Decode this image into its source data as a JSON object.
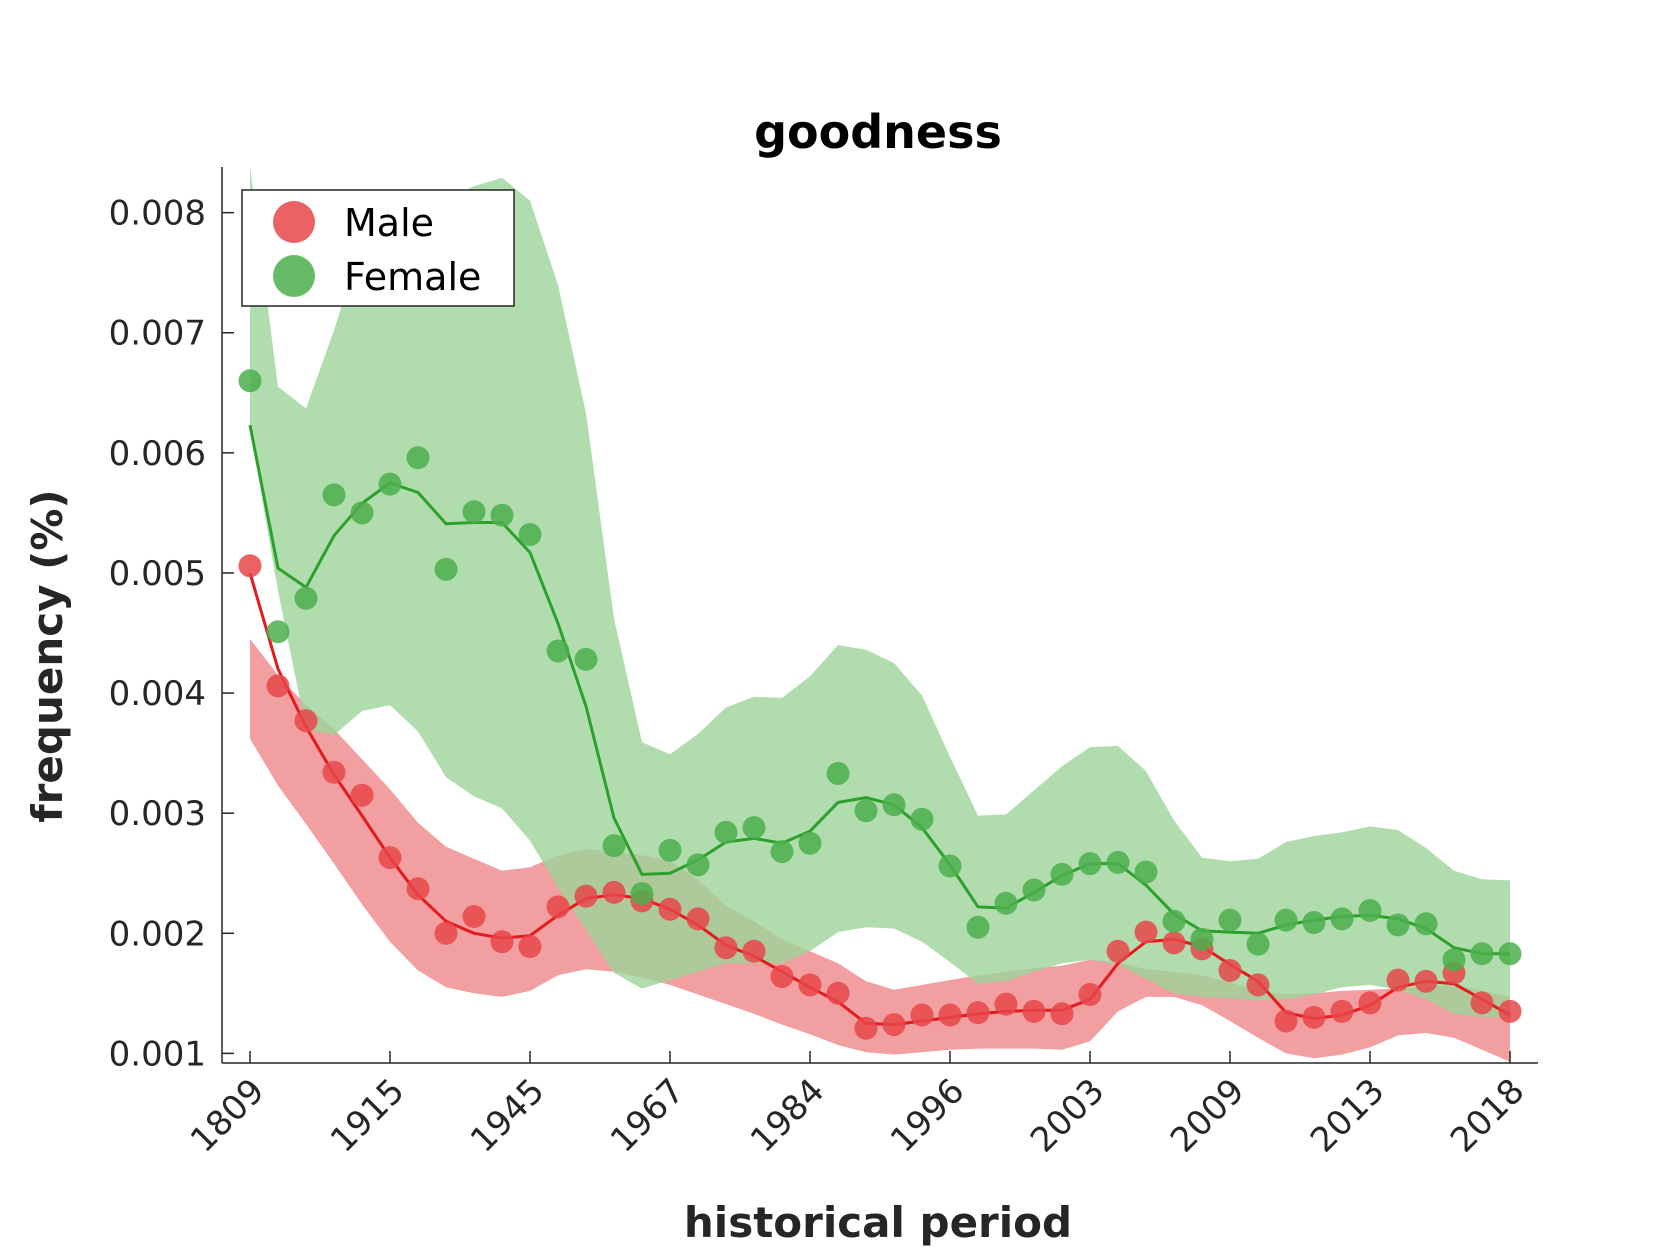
{
  "chart_data": {
    "type": "line",
    "title": "goodness",
    "xlabel": "historical period",
    "ylabel": "frequency (%)",
    "x_tick_labels": [
      "1809",
      "1915",
      "1945",
      "1967",
      "1984",
      "1996",
      "2003",
      "2009",
      "2013",
      "2018"
    ],
    "y_ticks": [
      0.001,
      0.002,
      0.003,
      0.004,
      0.005,
      0.006,
      0.007,
      0.008
    ],
    "y_tick_labels": [
      "0.001",
      "0.002",
      "0.003",
      "0.004",
      "0.005",
      "0.006",
      "0.007",
      "0.008"
    ],
    "ylim": [
      0.00092,
      0.00838
    ],
    "xlim": [
      -1,
      46
    ],
    "grid": false,
    "legend_position": "top-left",
    "series": [
      {
        "name": "Male",
        "color": "#e41a1c",
        "marker_color": "#e8474a",
        "band_color": "#f09a9b",
        "points": [
          0.00506,
          0.00406,
          0.00377,
          0.00334,
          0.00315,
          0.00263,
          0.00237,
          0.002,
          0.00214,
          0.00193,
          0.00189,
          0.00222,
          0.00231,
          0.00234,
          0.00227,
          0.0022,
          0.00212,
          0.00188,
          0.00185,
          0.00164,
          0.00157,
          0.0015,
          0.00121,
          0.00124,
          0.00132,
          0.00132,
          0.00134,
          0.00141,
          0.00135,
          0.00133,
          0.00149,
          0.00185,
          0.00201,
          0.00192,
          0.00187,
          0.00169,
          0.00157,
          0.00127,
          0.0013,
          0.00135,
          0.00142,
          0.00161,
          0.0016,
          0.00167,
          0.00142,
          0.00135
        ],
        "trend": [
          0.005,
          0.0042,
          0.00372,
          0.00332,
          0.00298,
          0.00263,
          0.00232,
          0.0021,
          0.002,
          0.00196,
          0.00198,
          0.00215,
          0.00229,
          0.00232,
          0.00229,
          0.0022,
          0.00207,
          0.0019,
          0.00181,
          0.00168,
          0.00155,
          0.00143,
          0.00125,
          0.00124,
          0.00127,
          0.0013,
          0.00133,
          0.00135,
          0.00136,
          0.00136,
          0.00145,
          0.00175,
          0.00193,
          0.00195,
          0.00189,
          0.00174,
          0.0016,
          0.00134,
          0.00129,
          0.00132,
          0.0014,
          0.00155,
          0.0016,
          0.00158,
          0.00145,
          0.00132
        ],
        "band_upper": [
          0.00445,
          0.00415,
          0.0039,
          0.0037,
          0.00345,
          0.0032,
          0.00292,
          0.00272,
          0.00262,
          0.00252,
          0.00255,
          0.00265,
          0.0027,
          0.00268,
          0.00265,
          0.0026,
          0.00245,
          0.00223,
          0.0021,
          0.00195,
          0.00185,
          0.00175,
          0.0016,
          0.00153,
          0.00157,
          0.00161,
          0.00165,
          0.00168,
          0.00171,
          0.00173,
          0.00178,
          0.00176,
          0.0017,
          0.00168,
          0.00165,
          0.00159,
          0.00152,
          0.00149,
          0.0015,
          0.00152,
          0.00153,
          0.00154,
          0.00155,
          0.00157,
          0.00152,
          0.00147
        ],
        "band_lower": [
          0.00362,
          0.00323,
          0.00291,
          0.00258,
          0.00224,
          0.00193,
          0.00169,
          0.00155,
          0.0015,
          0.00147,
          0.00152,
          0.00165,
          0.0017,
          0.00168,
          0.00163,
          0.00157,
          0.00149,
          0.00141,
          0.00133,
          0.00124,
          0.00116,
          0.00107,
          0.00101,
          0.00099,
          0.00101,
          0.00103,
          0.00104,
          0.00104,
          0.00104,
          0.00103,
          0.0011,
          0.00135,
          0.00147,
          0.00147,
          0.0014,
          0.00127,
          0.00113,
          0.001,
          0.00096,
          0.00099,
          0.00105,
          0.00115,
          0.00117,
          0.00113,
          0.00103,
          0.00093
        ]
      },
      {
        "name": "Female",
        "color": "#2ca02c",
        "marker_color": "#4caf4c",
        "band_color": "#9ed59a",
        "points": [
          0.0066,
          0.00451,
          0.00479,
          0.00565,
          0.0055,
          0.00574,
          0.00596,
          0.00503,
          0.00551,
          0.00548,
          0.00532,
          0.00435,
          0.00428,
          0.00273,
          0.00233,
          0.00269,
          0.00257,
          0.00284,
          0.00288,
          0.00268,
          0.00275,
          0.00333,
          0.00302,
          0.00307,
          0.00295,
          0.00256,
          0.00205,
          0.00225,
          0.00236,
          0.00249,
          0.00258,
          0.00259,
          0.00251,
          0.0021,
          0.00195,
          0.00211,
          0.00191,
          0.00211,
          0.00209,
          0.00212,
          0.00219,
          0.00207,
          0.00208,
          0.00178,
          0.00183,
          0.00183
        ],
        "trend": [
          0.00623,
          0.00504,
          0.00488,
          0.00531,
          0.00558,
          0.00575,
          0.00567,
          0.00541,
          0.00542,
          0.00542,
          0.00517,
          0.00458,
          0.00389,
          0.00296,
          0.00249,
          0.0025,
          0.00261,
          0.00276,
          0.00279,
          0.00275,
          0.00285,
          0.00309,
          0.00313,
          0.00307,
          0.00288,
          0.00257,
          0.00222,
          0.00221,
          0.00234,
          0.00248,
          0.00258,
          0.00258,
          0.0024,
          0.00216,
          0.00202,
          0.00201,
          0.002,
          0.00207,
          0.00211,
          0.00214,
          0.00215,
          0.00212,
          0.00204,
          0.00188,
          0.00183,
          0.00183
        ],
        "band_upper": [
          0.00838,
          0.00655,
          0.00637,
          0.00702,
          0.00775,
          0.00808,
          0.00815,
          0.00812,
          0.00822,
          0.00829,
          0.0081,
          0.0074,
          0.00633,
          0.00462,
          0.00359,
          0.00349,
          0.00366,
          0.00388,
          0.00397,
          0.00396,
          0.00414,
          0.0044,
          0.00436,
          0.00425,
          0.00398,
          0.00347,
          0.00298,
          0.00299,
          0.00319,
          0.00339,
          0.00355,
          0.00356,
          0.00335,
          0.00294,
          0.00263,
          0.0026,
          0.00262,
          0.00276,
          0.00281,
          0.00284,
          0.00289,
          0.00286,
          0.00271,
          0.00252,
          0.00245,
          0.00244
        ],
        "band_lower": [
          0.0062,
          0.00485,
          0.0037,
          0.00365,
          0.00385,
          0.0039,
          0.00368,
          0.0033,
          0.00314,
          0.00304,
          0.00277,
          0.00238,
          0.00203,
          0.00167,
          0.00154,
          0.00161,
          0.00168,
          0.00175,
          0.00175,
          0.00175,
          0.00185,
          0.00201,
          0.00205,
          0.00204,
          0.00193,
          0.00176,
          0.00158,
          0.0016,
          0.00168,
          0.00175,
          0.00178,
          0.00174,
          0.00162,
          0.0015,
          0.00147,
          0.00146,
          0.00144,
          0.00145,
          0.00149,
          0.00155,
          0.00157,
          0.00153,
          0.00145,
          0.00133,
          0.0013,
          0.0013
        ]
      }
    ]
  }
}
